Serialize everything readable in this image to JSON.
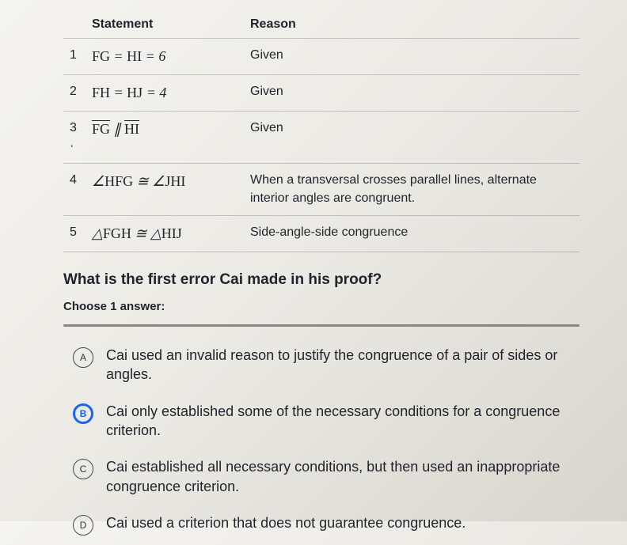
{
  "table": {
    "headers": {
      "statement": "Statement",
      "reason": "Reason"
    },
    "rows": [
      {
        "n": "1",
        "stmt_html": "<span class='up'>F</span><span class='up'>G</span> = <span class='up'>H</span><span class='up'>I</span> = 6",
        "reason": "Given"
      },
      {
        "n": "2",
        "stmt_html": "<span class='up'>F</span><span class='up'>H</span> = <span class='up'>H</span><span class='up'>J</span> = 4",
        "reason": "Given"
      },
      {
        "n": "3 ·",
        "stmt_html": "<span class='ovl'><span class='up'>F</span><span class='up'>G</span></span> &#8741; <span class='ovl'><span class='up'>H</span><span class='up'>I</span></span>",
        "reason": "Given"
      },
      {
        "n": "4",
        "stmt_html": "&#8736;<span class='up'>H</span><span class='up'>F</span><span class='up'>G</span> &#8773; &#8736;<span class='up'>J</span><span class='up'>H</span><span class='up'>I</span>",
        "reason": "When a transversal crosses parallel lines, alternate interior angles are congruent."
      },
      {
        "n": "5",
        "stmt_html": "&#9651;<span class='up'>F</span><span class='up'>G</span><span class='up'>H</span> &#8773; &#9651;<span class='up'>H</span><span class='up'>I</span><span class='up'>J</span>",
        "reason": "Side-angle-side congruence"
      }
    ]
  },
  "question": "What is the first error Cai made in his proof?",
  "choose": "Choose 1 answer:",
  "answers": [
    {
      "letter": "A",
      "text": "Cai used an invalid reason to justify the congruence of a pair of sides or angles.",
      "selected": false
    },
    {
      "letter": "B",
      "text": "Cai only established some of the necessary conditions for a congruence criterion.",
      "selected": true,
      "cursor_word": "criterion"
    },
    {
      "letter": "C",
      "text": "Cai established all necessary conditions, but then used an inappropriate congruence criterion.",
      "selected": false
    },
    {
      "letter": "D",
      "text": "Cai used a criterion that does not guarantee congruence.",
      "selected": false
    }
  ],
  "colors": {
    "accent": "#1865f2",
    "border": "rgba(0,0,0,0.18)",
    "text": "#21242c"
  }
}
